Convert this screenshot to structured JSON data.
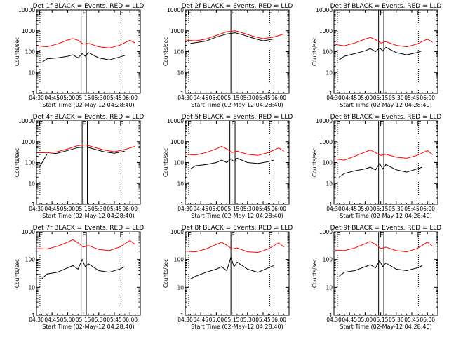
{
  "figure": {
    "background": "#ffffff",
    "events_color": "#000000",
    "lld_color": "#ff0000",
    "x_tick_labels": [
      "04:30",
      "04:45",
      "05:00",
      "05:15",
      "05:30",
      "05:45",
      "06:00"
    ],
    "y_tick_labels": [
      "1",
      "10",
      "100",
      "1000",
      "10000"
    ],
    "xlabel": "Start Time (02-May-12 04:28:40)",
    "ylabel": "Counts/sec",
    "markers": [
      "E",
      "F",
      "E"
    ]
  },
  "chart_data": [
    {
      "type": "line",
      "title": "Det 1f BLACK = Events, RED = LLD",
      "xlabel": "Start Time (02-May-12 04:28:40)",
      "ylabel": "Counts/sec",
      "y_scale": "log",
      "xlim": [
        "04:30",
        "06:10"
      ],
      "ylim": [
        1,
        10000
      ],
      "grid": false,
      "series": [
        {
          "color": "#ff0000",
          "x": [
            "04:31",
            "04:40",
            "04:50",
            "05:00",
            "05:05",
            "05:10",
            "05:15",
            "05:20",
            "05:30",
            "05:40",
            "05:50",
            "06:00",
            "06:05"
          ],
          "values": [
            190,
            170,
            230,
            360,
            420,
            350,
            230,
            250,
            170,
            150,
            200,
            350,
            260
          ]
        },
        {
          "color": "#000000",
          "x": [
            "04:35",
            "04:40",
            "04:50",
            "05:00",
            "05:05",
            "05:10",
            "05:14",
            "05:17",
            "05:20",
            "05:30",
            "05:40",
            "05:50",
            "05:55"
          ],
          "values": [
            30,
            45,
            50,
            60,
            70,
            50,
            80,
            60,
            90,
            50,
            40,
            55,
            65
          ]
        }
      ],
      "vlines": [
        "05:13",
        "05:18"
      ],
      "markers": [
        {
          "text": "E",
          "x": "04:32"
        },
        {
          "text": "F",
          "x": "05:14"
        },
        {
          "text": "E",
          "x": "05:50"
        }
      ]
    },
    {
      "type": "line",
      "title": "Det 2f BLACK = Events, RED = LLD",
      "xlabel": "Start Time (02-May-12 04:28:40)",
      "ylabel": "Counts/sec",
      "y_scale": "log",
      "xlim": [
        "04:30",
        "06:10"
      ],
      "ylim": [
        1,
        10000
      ],
      "grid": false,
      "series": [
        {
          "color": "#ff0000",
          "x": [
            "04:31",
            "04:40",
            "04:50",
            "05:00",
            "05:10",
            "05:18",
            "05:25",
            "05:35",
            "05:45",
            "05:55",
            "06:05"
          ],
          "values": [
            350,
            330,
            400,
            600,
            900,
            1000,
            800,
            550,
            420,
            500,
            700
          ]
        },
        {
          "color": "#000000",
          "x": [
            "04:35",
            "04:40",
            "04:50",
            "05:00",
            "05:10",
            "05:18",
            "05:25",
            "05:35",
            "05:45",
            "05:55"
          ],
          "values": [
            250,
            270,
            320,
            500,
            700,
            800,
            650,
            450,
            330,
            400
          ]
        }
      ],
      "vlines": [
        "05:14",
        "05:19"
      ],
      "markers": [
        {
          "text": "E",
          "x": "04:32"
        },
        {
          "text": "F",
          "x": "05:14"
        },
        {
          "text": "E",
          "x": "05:50"
        }
      ]
    },
    {
      "type": "line",
      "title": "Det 3f BLACK = Events, RED = LLD",
      "xlabel": "Start Time (02-May-12 04:28:40)",
      "ylabel": "Counts/sec",
      "y_scale": "log",
      "xlim": [
        "04:30",
        "06:10"
      ],
      "ylim": [
        1,
        10000
      ],
      "grid": false,
      "series": [
        {
          "color": "#ff0000",
          "x": [
            "04:31",
            "04:40",
            "04:50",
            "05:00",
            "05:05",
            "05:10",
            "05:15",
            "05:20",
            "05:30",
            "05:40",
            "05:50",
            "06:00",
            "06:05"
          ],
          "values": [
            220,
            190,
            260,
            400,
            480,
            380,
            260,
            300,
            200,
            170,
            230,
            400,
            280
          ]
        },
        {
          "color": "#000000",
          "x": [
            "04:35",
            "04:40",
            "04:50",
            "05:00",
            "05:05",
            "05:10",
            "05:14",
            "05:17",
            "05:20",
            "05:30",
            "05:40",
            "05:50",
            "05:55"
          ],
          "values": [
            40,
            60,
            80,
            110,
            140,
            100,
            150,
            110,
            160,
            90,
            70,
            90,
            110
          ]
        }
      ],
      "vlines": [
        "05:13",
        "05:18"
      ],
      "markers": [
        {
          "text": "E",
          "x": "04:32"
        },
        {
          "text": "F",
          "x": "05:14"
        },
        {
          "text": "E",
          "x": "05:50"
        }
      ]
    },
    {
      "type": "line",
      "title": "Det 4f BLACK = Events, RED = LLD",
      "xlabel": "Start Time (02-May-12 04:28:40)",
      "ylabel": "Counts/sec",
      "y_scale": "log",
      "xlim": [
        "04:30",
        "06:10"
      ],
      "ylim": [
        1,
        10000
      ],
      "grid": false,
      "series": [
        {
          "color": "#ff0000",
          "x": [
            "04:31",
            "04:40",
            "04:50",
            "05:00",
            "05:10",
            "05:18",
            "05:25",
            "05:35",
            "05:45",
            "05:55",
            "06:05"
          ],
          "values": [
            300,
            290,
            330,
            450,
            650,
            700,
            550,
            400,
            330,
            420,
            600
          ]
        },
        {
          "color": "#000000",
          "x": [
            "04:33",
            "04:40",
            "04:50",
            "05:00",
            "05:10",
            "05:18",
            "05:25",
            "05:35",
            "05:45",
            "05:55"
          ],
          "values": [
            60,
            250,
            280,
            380,
            520,
            560,
            450,
            330,
            280,
            350
          ]
        }
      ],
      "vlines": [
        "05:14",
        "05:19"
      ],
      "markers": [
        {
          "text": "E",
          "x": "04:32"
        },
        {
          "text": "F",
          "x": "05:14"
        },
        {
          "text": "E",
          "x": "05:50"
        }
      ]
    },
    {
      "type": "line",
      "title": "Det 5f BLACK = Events, RED = LLD",
      "xlabel": "Start Time (02-May-12 04:28:40)",
      "ylabel": "Counts/sec",
      "y_scale": "log",
      "xlim": [
        "04:30",
        "06:10"
      ],
      "ylim": [
        1,
        10000
      ],
      "grid": false,
      "series": [
        {
          "color": "#ff0000",
          "x": [
            "04:31",
            "04:40",
            "04:50",
            "05:00",
            "05:05",
            "05:10",
            "05:15",
            "05:20",
            "05:30",
            "05:40",
            "05:50",
            "06:00",
            "06:05"
          ],
          "values": [
            250,
            230,
            300,
            450,
            600,
            450,
            300,
            350,
            250,
            220,
            300,
            500,
            350
          ]
        },
        {
          "color": "#000000",
          "x": [
            "04:35",
            "04:40",
            "04:50",
            "05:00",
            "05:05",
            "05:10",
            "05:14",
            "05:17",
            "05:20",
            "05:30",
            "05:40",
            "05:50",
            "05:55"
          ],
          "values": [
            50,
            70,
            80,
            100,
            130,
            100,
            150,
            110,
            160,
            100,
            90,
            110,
            130
          ]
        }
      ],
      "vlines": [
        "05:13",
        "05:18"
      ],
      "markers": [
        {
          "text": "E",
          "x": "04:32"
        },
        {
          "text": "F",
          "x": "05:14"
        },
        {
          "text": "E",
          "x": "05:50"
        }
      ]
    },
    {
      "type": "line",
      "title": "Det 6f BLACK = Events, RED = LLD",
      "xlabel": "Start Time (02-May-12 04:28:40)",
      "ylabel": "Counts/sec",
      "y_scale": "log",
      "xlim": [
        "04:30",
        "06:10"
      ],
      "ylim": [
        1,
        10000
      ],
      "grid": false,
      "series": [
        {
          "color": "#ff0000",
          "x": [
            "04:31",
            "04:40",
            "04:50",
            "05:00",
            "05:05",
            "05:10",
            "05:15",
            "05:20",
            "05:30",
            "05:40",
            "05:50",
            "06:00",
            "06:05"
          ],
          "values": [
            150,
            130,
            200,
            320,
            400,
            300,
            220,
            250,
            180,
            160,
            220,
            380,
            240
          ]
        },
        {
          "color": "#000000",
          "x": [
            "04:35",
            "04:40",
            "04:50",
            "05:00",
            "05:05",
            "05:10",
            "05:14",
            "05:17",
            "05:20",
            "05:30",
            "05:40",
            "05:50",
            "05:55"
          ],
          "values": [
            20,
            30,
            40,
            50,
            60,
            45,
            90,
            50,
            80,
            45,
            35,
            50,
            60
          ]
        }
      ],
      "vlines": [
        "05:13",
        "05:18"
      ],
      "markers": [
        {
          "text": "E",
          "x": "04:32"
        },
        {
          "text": "F",
          "x": "05:14"
        },
        {
          "text": "E",
          "x": "05:50"
        }
      ]
    },
    {
      "type": "line",
      "title": "Det 7f BLACK = Events, RED = LLD",
      "xlabel": "Start Time (02-May-12 04:28:40)",
      "ylabel": "Counts/sec",
      "y_scale": "log",
      "xlim": [
        "04:30",
        "06:10"
      ],
      "ylim": [
        1,
        1000
      ],
      "grid": false,
      "series": [
        {
          "color": "#ff0000",
          "x": [
            "04:31",
            "04:40",
            "04:50",
            "05:00",
            "05:05",
            "05:10",
            "05:15",
            "05:20",
            "05:30",
            "05:40",
            "05:50",
            "06:00",
            "06:05"
          ],
          "values": [
            250,
            240,
            300,
            420,
            520,
            400,
            280,
            320,
            230,
            210,
            280,
            480,
            350
          ]
        },
        {
          "color": "#000000",
          "x": [
            "04:35",
            "04:40",
            "04:50",
            "05:00",
            "05:05",
            "05:10",
            "05:14",
            "05:17",
            "05:20",
            "05:30",
            "05:40",
            "05:50",
            "05:55"
          ],
          "values": [
            20,
            30,
            35,
            50,
            60,
            45,
            100,
            55,
            70,
            40,
            35,
            45,
            55
          ]
        }
      ],
      "vlines": [
        "05:13",
        "05:18"
      ],
      "markers": [
        {
          "text": "E",
          "x": "04:32"
        },
        {
          "text": "F",
          "x": "05:14"
        },
        {
          "text": "E",
          "x": "05:50"
        }
      ]
    },
    {
      "type": "line",
      "title": "Det 8f BLACK = Events, RED = LLD",
      "xlabel": "Start Time (02-May-12 04:28:40)",
      "ylabel": "Counts/sec",
      "y_scale": "log",
      "xlim": [
        "04:30",
        "06:10"
      ],
      "ylim": [
        1,
        1000
      ],
      "grid": false,
      "series": [
        {
          "color": "#ff0000",
          "x": [
            "04:31",
            "04:40",
            "04:50",
            "05:00",
            "05:05",
            "05:10",
            "05:15",
            "05:20",
            "05:30",
            "05:40",
            "05:50",
            "06:00",
            "06:05"
          ],
          "values": [
            200,
            190,
            240,
            350,
            420,
            330,
            240,
            260,
            190,
            180,
            240,
            400,
            280
          ]
        },
        {
          "color": "#000000",
          "x": [
            "04:35",
            "04:40",
            "04:50",
            "05:00",
            "05:05",
            "05:10",
            "05:14",
            "05:17",
            "05:20",
            "05:30",
            "05:40",
            "05:50",
            "05:55"
          ],
          "values": [
            20,
            25,
            35,
            45,
            55,
            40,
            120,
            55,
            80,
            45,
            35,
            50,
            60
          ]
        }
      ],
      "vlines": [
        "05:14",
        "05:19"
      ],
      "markers": [
        {
          "text": "E",
          "x": "04:32"
        },
        {
          "text": "F",
          "x": "05:14"
        },
        {
          "text": "E",
          "x": "05:50"
        }
      ]
    },
    {
      "type": "line",
      "title": "Det 9f BLACK = Events, RED = LLD",
      "xlabel": "Start Time (02-May-12 04:28:40)",
      "ylabel": "Counts/sec",
      "y_scale": "log",
      "xlim": [
        "04:30",
        "06:10"
      ],
      "ylim": [
        1,
        1000
      ],
      "grid": false,
      "series": [
        {
          "color": "#ff0000",
          "x": [
            "04:31",
            "04:40",
            "04:50",
            "05:00",
            "05:05",
            "05:10",
            "05:15",
            "05:20",
            "05:30",
            "05:40",
            "05:50",
            "06:00",
            "06:05"
          ],
          "values": [
            220,
            210,
            260,
            370,
            450,
            350,
            250,
            280,
            210,
            190,
            250,
            420,
            300
          ]
        },
        {
          "color": "#000000",
          "x": [
            "04:35",
            "04:40",
            "04:50",
            "05:00",
            "05:05",
            "05:10",
            "05:14",
            "05:17",
            "05:20",
            "05:30",
            "05:40",
            "05:50",
            "05:55"
          ],
          "values": [
            25,
            35,
            40,
            55,
            65,
            50,
            90,
            55,
            75,
            45,
            40,
            50,
            60
          ]
        }
      ],
      "vlines": [
        "05:13",
        "05:18"
      ],
      "markers": [
        {
          "text": "E",
          "x": "04:32"
        },
        {
          "text": "F",
          "x": "05:14"
        },
        {
          "text": "E",
          "x": "05:50"
        }
      ]
    }
  ]
}
